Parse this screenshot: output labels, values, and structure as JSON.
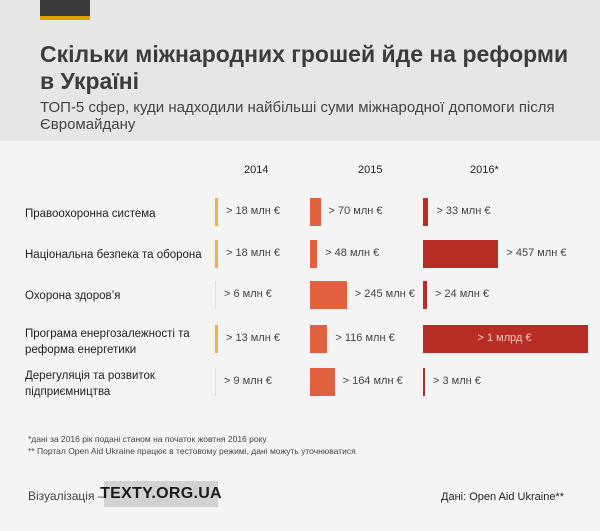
{
  "header": {
    "title": "Скільки міжнародних грошей йде на реформи в Україні",
    "subtitle": "ТОП-5 сфер, куди надходили найбільші суми міжнародної допомоги після Євромайдану"
  },
  "colors": {
    "2014": "#f5b041",
    "2015": "#e06040",
    "2016": "#b82e26",
    "header_bg": "#e6e6e6",
    "body_bg": "#f4f4f4"
  },
  "chart_data": {
    "type": "bar",
    "years": [
      "2014",
      "2015",
      "2016*"
    ],
    "categories": [
      "Правоохоронна система",
      "Національна безпека та оборона",
      "Охорона здоров’я",
      "Програма енергозалежності  та реформа енергетики",
      "Дерегуляція та розвиток підприємництва"
    ],
    "series": [
      {
        "name": "2014",
        "values": [
          18,
          18,
          6,
          13,
          9
        ],
        "labels": [
          "> 18 млн €",
          "> 18 млн €",
          "> 6 млн €",
          "> 13 млн €",
          "> 9 млн €"
        ]
      },
      {
        "name": "2015",
        "values": [
          70,
          48,
          245,
          116,
          164
        ],
        "labels": [
          "> 70 млн €",
          "> 48 млн €",
          "> 245 млн €",
          "> 116 млн €",
          "> 164 млн €"
        ]
      },
      {
        "name": "2016*",
        "values": [
          33,
          457,
          24,
          1000,
          3
        ],
        "labels": [
          "> 33 млн €",
          "> 457 млн €",
          "> 24 млн €",
          "> 1 млрд €",
          "> 3 млн €"
        ]
      }
    ],
    "unit": "млн €"
  },
  "footnotes": [
    "*дані за 2016 рік подані станом на початок жовтня 2016 року",
    "** Портал Open Aid Ukraine працює в тестовому режимі, дані можуть уточнюватися"
  ],
  "footer": {
    "credit": "Візуалізація —",
    "logo": "TEXTY.ORG.UA",
    "source": "Дані: Open Aid Ukraine**"
  }
}
